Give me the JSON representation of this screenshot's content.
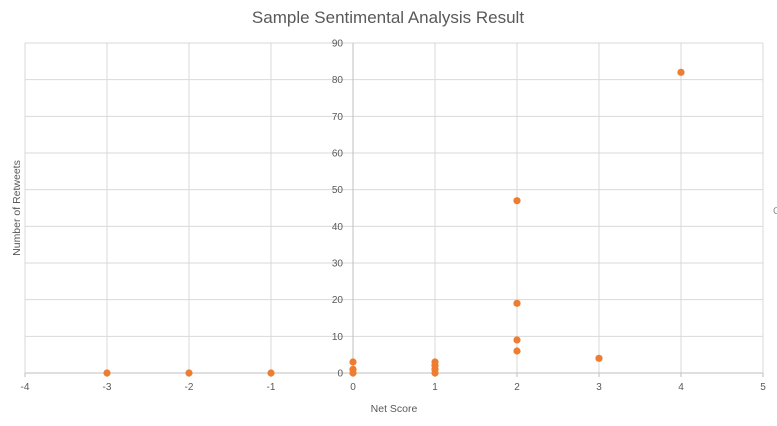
{
  "chart_data": {
    "type": "scatter",
    "title": "Sample Sentimental Analysis Result",
    "xlabel": "Net Score",
    "ylabel": "Number of Retweets",
    "xlim": [
      -4,
      5
    ],
    "ylim": [
      0,
      90
    ],
    "xticks": [
      -4,
      -3,
      -2,
      -1,
      0,
      1,
      2,
      3,
      4,
      5
    ],
    "yticks": [
      0,
      10,
      20,
      30,
      40,
      50,
      60,
      70,
      80,
      90
    ],
    "grid": true,
    "legend": "none",
    "marker_color": "#ed7d31",
    "series": [
      {
        "points": [
          {
            "x": -3,
            "y": 0
          },
          {
            "x": -2,
            "y": 0
          },
          {
            "x": -1,
            "y": 0
          },
          {
            "x": 0,
            "y": 0
          },
          {
            "x": 0,
            "y": 1
          },
          {
            "x": 0,
            "y": 3
          },
          {
            "x": 1,
            "y": 0
          },
          {
            "x": 1,
            "y": 1
          },
          {
            "x": 1,
            "y": 2
          },
          {
            "x": 1,
            "y": 3
          },
          {
            "x": 2,
            "y": 6
          },
          {
            "x": 2,
            "y": 9
          },
          {
            "x": 2,
            "y": 19
          },
          {
            "x": 2,
            "y": 47
          },
          {
            "x": 3,
            "y": 4
          },
          {
            "x": 4,
            "y": 82
          }
        ]
      }
    ]
  },
  "edge_mark": "C"
}
